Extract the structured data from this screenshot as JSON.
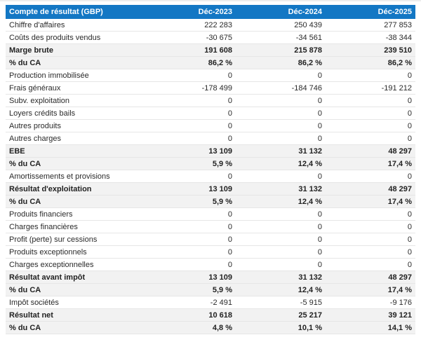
{
  "colors": {
    "header_bg": "#1377c4",
    "header_text": "#ffffff",
    "subtotal_row_bg": "#f2f2f2",
    "row_divider": "#e6e6e6",
    "body_text": "#2a2a2a"
  },
  "table": {
    "header": {
      "label": "Compte de résultat (GBP)",
      "columns": [
        "Déc-2023",
        "Déc-2024",
        "Déc-2025"
      ]
    },
    "rows": [
      {
        "label": "Chiffre d'affaires",
        "values": [
          "222 283",
          "250 439",
          "277 853"
        ],
        "emphasis": false
      },
      {
        "label": "Coûts des produits vendus",
        "values": [
          "-30 675",
          "-34 561",
          "-38 344"
        ],
        "emphasis": false
      },
      {
        "label": "Marge brute",
        "values": [
          "191 608",
          "215 878",
          "239 510"
        ],
        "emphasis": true
      },
      {
        "label": "% du CA",
        "values": [
          "86,2 %",
          "86,2 %",
          "86,2 %"
        ],
        "emphasis": true
      },
      {
        "label": "Production immobilisée",
        "values": [
          "0",
          "0",
          "0"
        ],
        "emphasis": false
      },
      {
        "label": "Frais généraux",
        "values": [
          "-178 499",
          "-184 746",
          "-191 212"
        ],
        "emphasis": false
      },
      {
        "label": "Subv. exploitation",
        "values": [
          "0",
          "0",
          "0"
        ],
        "emphasis": false
      },
      {
        "label": "Loyers crédits bails",
        "values": [
          "0",
          "0",
          "0"
        ],
        "emphasis": false
      },
      {
        "label": "Autres produits",
        "values": [
          "0",
          "0",
          "0"
        ],
        "emphasis": false
      },
      {
        "label": "Autres charges",
        "values": [
          "0",
          "0",
          "0"
        ],
        "emphasis": false
      },
      {
        "label": "EBE",
        "values": [
          "13 109",
          "31 132",
          "48 297"
        ],
        "emphasis": true
      },
      {
        "label": "% du CA",
        "values": [
          "5,9 %",
          "12,4 %",
          "17,4 %"
        ],
        "emphasis": true
      },
      {
        "label": "Amortissements et provisions",
        "values": [
          "0",
          "0",
          "0"
        ],
        "emphasis": false
      },
      {
        "label": "Résultat d'exploitation",
        "values": [
          "13 109",
          "31 132",
          "48 297"
        ],
        "emphasis": true
      },
      {
        "label": "% du CA",
        "values": [
          "5,9 %",
          "12,4 %",
          "17,4 %"
        ],
        "emphasis": true
      },
      {
        "label": "Produits financiers",
        "values": [
          "0",
          "0",
          "0"
        ],
        "emphasis": false
      },
      {
        "label": "Charges financières",
        "values": [
          "0",
          "0",
          "0"
        ],
        "emphasis": false
      },
      {
        "label": "Profit (perte) sur cessions",
        "values": [
          "0",
          "0",
          "0"
        ],
        "emphasis": false
      },
      {
        "label": "Produits exceptionnels",
        "values": [
          "0",
          "0",
          "0"
        ],
        "emphasis": false
      },
      {
        "label": "Charges exceptionnelles",
        "values": [
          "0",
          "0",
          "0"
        ],
        "emphasis": false
      },
      {
        "label": "Résultat avant impôt",
        "values": [
          "13 109",
          "31 132",
          "48 297"
        ],
        "emphasis": true
      },
      {
        "label": "% du CA",
        "values": [
          "5,9 %",
          "12,4 %",
          "17,4 %"
        ],
        "emphasis": true
      },
      {
        "label": "Impôt sociétés",
        "values": [
          "-2 491",
          "-5 915",
          "-9 176"
        ],
        "emphasis": false
      },
      {
        "label": "Résultat net",
        "values": [
          "10 618",
          "25 217",
          "39 121"
        ],
        "emphasis": true
      },
      {
        "label": "% du CA",
        "values": [
          "4,8 %",
          "10,1 %",
          "14,1 %"
        ],
        "emphasis": true
      }
    ]
  },
  "chart_data": {
    "type": "table",
    "title": "Compte de résultat (GBP)",
    "columns": [
      "Déc-2023",
      "Déc-2024",
      "Déc-2025"
    ],
    "rows": [
      {
        "label": "Chiffre d'affaires",
        "values": [
          222283,
          250439,
          277853
        ]
      },
      {
        "label": "Coûts des produits vendus",
        "values": [
          -30675,
          -34561,
          -38344
        ]
      },
      {
        "label": "Marge brute",
        "values": [
          191608,
          215878,
          239510
        ]
      },
      {
        "label": "% du CA (marge brute)",
        "values": [
          86.2,
          86.2,
          86.2
        ],
        "unit": "%"
      },
      {
        "label": "Production immobilisée",
        "values": [
          0,
          0,
          0
        ]
      },
      {
        "label": "Frais généraux",
        "values": [
          -178499,
          -184746,
          -191212
        ]
      },
      {
        "label": "Subv. exploitation",
        "values": [
          0,
          0,
          0
        ]
      },
      {
        "label": "Loyers crédits bails",
        "values": [
          0,
          0,
          0
        ]
      },
      {
        "label": "Autres produits",
        "values": [
          0,
          0,
          0
        ]
      },
      {
        "label": "Autres charges",
        "values": [
          0,
          0,
          0
        ]
      },
      {
        "label": "EBE",
        "values": [
          13109,
          31132,
          48297
        ]
      },
      {
        "label": "% du CA (EBE)",
        "values": [
          5.9,
          12.4,
          17.4
        ],
        "unit": "%"
      },
      {
        "label": "Amortissements et provisions",
        "values": [
          0,
          0,
          0
        ]
      },
      {
        "label": "Résultat d'exploitation",
        "values": [
          13109,
          31132,
          48297
        ]
      },
      {
        "label": "% du CA (résultat d'exploitation)",
        "values": [
          5.9,
          12.4,
          17.4
        ],
        "unit": "%"
      },
      {
        "label": "Produits financiers",
        "values": [
          0,
          0,
          0
        ]
      },
      {
        "label": "Charges financières",
        "values": [
          0,
          0,
          0
        ]
      },
      {
        "label": "Profit (perte) sur cessions",
        "values": [
          0,
          0,
          0
        ]
      },
      {
        "label": "Produits exceptionnels",
        "values": [
          0,
          0,
          0
        ]
      },
      {
        "label": "Charges exceptionnelles",
        "values": [
          0,
          0,
          0
        ]
      },
      {
        "label": "Résultat avant impôt",
        "values": [
          13109,
          31132,
          48297
        ]
      },
      {
        "label": "% du CA (résultat avant impôt)",
        "values": [
          5.9,
          12.4,
          17.4
        ],
        "unit": "%"
      },
      {
        "label": "Impôt sociétés",
        "values": [
          -2491,
          -5915,
          -9176
        ]
      },
      {
        "label": "Résultat net",
        "values": [
          10618,
          25217,
          39121
        ]
      },
      {
        "label": "% du CA (résultat net)",
        "values": [
          4.8,
          10.1,
          14.1
        ],
        "unit": "%"
      }
    ]
  }
}
